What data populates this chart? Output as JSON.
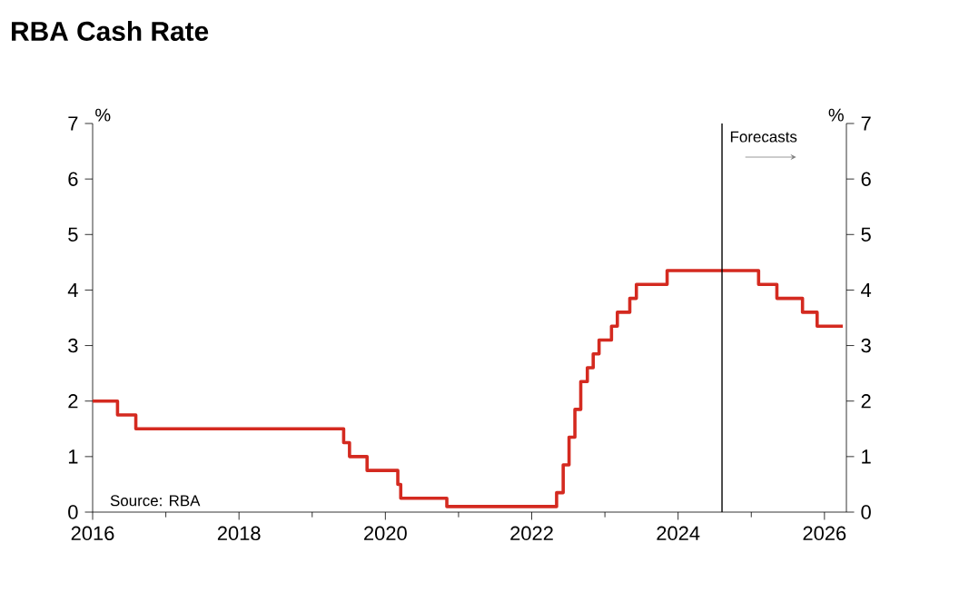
{
  "chart_data": {
    "type": "step",
    "title": "RBA Cash Rate",
    "ylabel": "%",
    "y2label": "%",
    "x": [
      2016.0,
      2016.34,
      2016.59,
      2019.43,
      2019.51,
      2019.75,
      2020.17,
      2020.21,
      2020.84,
      2022.34,
      2022.43,
      2022.51,
      2022.59,
      2022.67,
      2022.76,
      2022.84,
      2022.92,
      2023.09,
      2023.17,
      2023.34,
      2023.43,
      2023.85,
      2025.1,
      2025.35,
      2025.7,
      2025.9,
      2026.25
    ],
    "series": [
      {
        "color": "#d42a20",
        "values": [
          2.0,
          1.75,
          1.5,
          1.25,
          1.0,
          0.75,
          0.5,
          0.25,
          0.1,
          0.35,
          0.85,
          1.35,
          1.85,
          2.35,
          2.6,
          2.85,
          3.1,
          3.35,
          3.6,
          3.85,
          4.1,
          4.35,
          4.1,
          3.85,
          3.6,
          3.35,
          3.35
        ]
      }
    ],
    "xlim": [
      2016,
      2026.3
    ],
    "xticks": [
      2016,
      2018,
      2020,
      2022,
      2024,
      2026
    ],
    "ylim": [
      0,
      7
    ],
    "yticks": [
      0,
      1,
      2,
      3,
      4,
      5,
      6,
      7
    ],
    "y2lim": [
      0,
      7
    ],
    "y2ticks": [
      0,
      1,
      2,
      3,
      4,
      5,
      6,
      7
    ],
    "ref_lines": [
      {
        "axis": "x",
        "value": 2024.6,
        "color": "#000000"
      }
    ],
    "annotations": [
      "Forecasts",
      "Source: RBA"
    ],
    "grid": false,
    "marker": "none",
    "line_style": "solid"
  }
}
